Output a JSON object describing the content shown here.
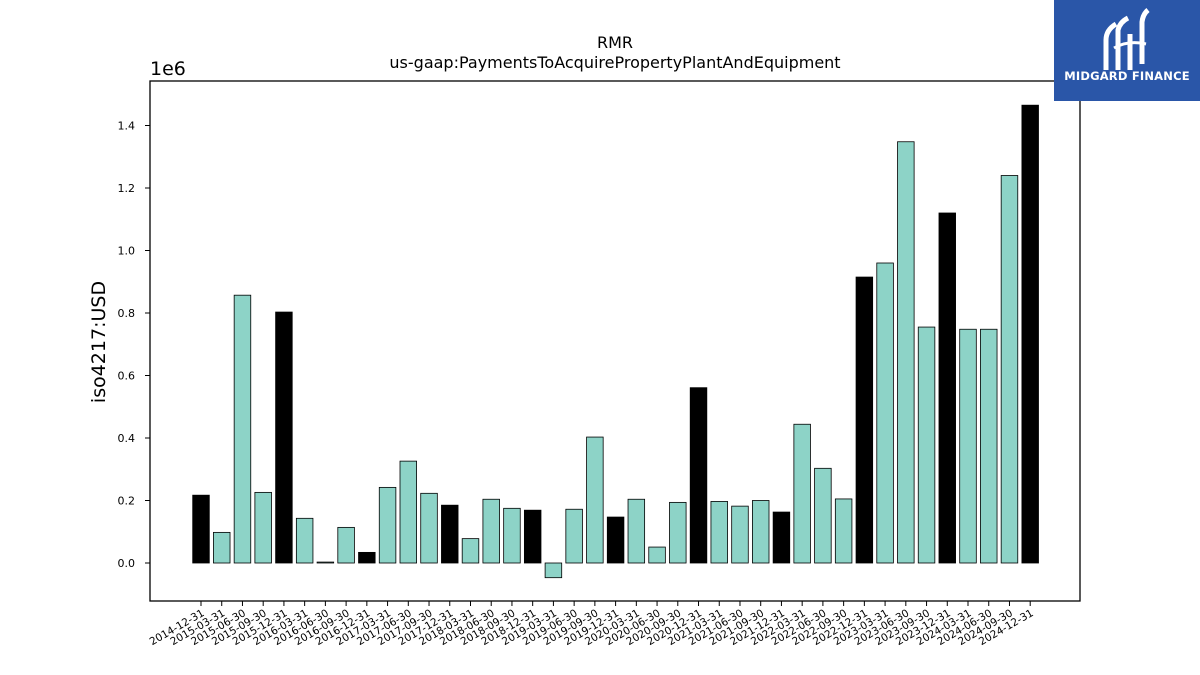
{
  "brand": {
    "name": "MIDGARD FINANCE",
    "color": "#2a56a8"
  },
  "chart_data": {
    "type": "bar",
    "title": "RMR",
    "subtitle": "us-gaap:PaymentsToAcquirePropertyPlantAndEquipment",
    "ylabel": "iso4217:USD",
    "xlabel": "",
    "scale_label": "1e6",
    "ylim": [
      -0.12,
      1.55
    ],
    "yticks": [
      0.0,
      0.2,
      0.4,
      0.6,
      0.8,
      1.0,
      1.2,
      1.4
    ],
    "grid": false,
    "colors": {
      "quarter": "#8dd3c7",
      "year_end": "#000000"
    },
    "categories": [
      "2014-12-31",
      "2015-03-31",
      "2015-06-30",
      "2015-09-30",
      "2015-12-31",
      "2016-03-31",
      "2016-06-30",
      "2016-09-30",
      "2016-12-31",
      "2017-03-31",
      "2017-06-30",
      "2017-09-30",
      "2017-12-31",
      "2018-03-31",
      "2018-06-30",
      "2018-09-30",
      "2018-12-31",
      "2019-03-31",
      "2019-06-30",
      "2019-09-30",
      "2019-12-31",
      "2020-03-31",
      "2020-06-30",
      "2020-09-30",
      "2020-12-31",
      "2021-03-31",
      "2021-06-30",
      "2021-09-30",
      "2021-12-31",
      "2022-03-31",
      "2022-06-30",
      "2022-09-30",
      "2022-12-31",
      "2023-03-31",
      "2023-06-30",
      "2023-09-30",
      "2023-12-31",
      "2024-03-31",
      "2024-06-30",
      "2024-09-30",
      "2024-12-31"
    ],
    "values": [
      0.217,
      0.098,
      0.857,
      0.226,
      0.803,
      0.143,
      0.003,
      0.114,
      0.034,
      0.242,
      0.326,
      0.223,
      0.185,
      0.078,
      0.204,
      0.175,
      0.169,
      -0.047,
      0.172,
      0.403,
      0.147,
      0.204,
      0.051,
      0.194,
      0.561,
      0.197,
      0.182,
      0.2,
      0.163,
      0.444,
      0.303,
      0.205,
      0.915,
      0.96,
      1.348,
      0.755,
      1.12,
      0.748,
      0.748,
      1.24,
      1.465
    ],
    "year_end": [
      true,
      false,
      false,
      false,
      true,
      false,
      false,
      false,
      true,
      false,
      false,
      false,
      true,
      false,
      false,
      false,
      true,
      false,
      false,
      false,
      true,
      false,
      false,
      false,
      true,
      false,
      false,
      false,
      true,
      false,
      false,
      false,
      true,
      false,
      false,
      false,
      true,
      false,
      false,
      false,
      true
    ]
  }
}
